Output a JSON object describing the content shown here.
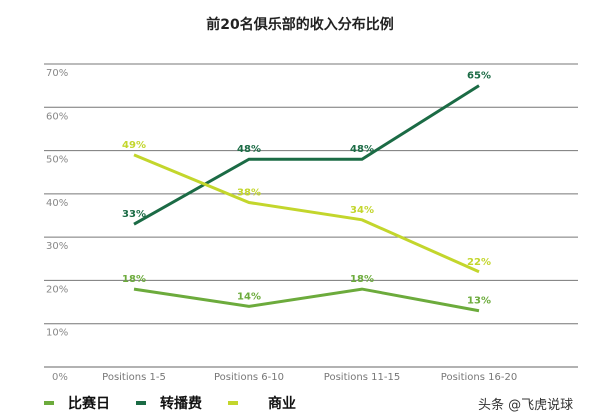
{
  "chart_data": {
    "type": "line",
    "title": "前20名俱乐部的收入分布比例",
    "categories": [
      "Positions 1-5",
      "Positions 6-10",
      "Positions 11-15",
      "Positions 16-20"
    ],
    "ylim": [
      0,
      70
    ],
    "yticks": [
      "0%",
      "10%",
      "20%",
      "30%",
      "40%",
      "50%",
      "60%",
      "70%"
    ],
    "grid": true,
    "legend_placement": "bottom-left",
    "series": [
      {
        "name": "比赛日",
        "values": [
          18,
          14,
          18,
          13
        ],
        "labels": [
          "18%",
          "14%",
          "18%",
          "13%"
        ],
        "color": "#6cab3c"
      },
      {
        "name": "转播费",
        "values": [
          33,
          48,
          48,
          65
        ],
        "labels": [
          "33%",
          "48%",
          "48%",
          "65%"
        ],
        "color": "#1b6b45"
      },
      {
        "name": "商业",
        "values": [
          49,
          38,
          34,
          22
        ],
        "labels": [
          "49%",
          "38%",
          "34%",
          "22%"
        ],
        "color": "#c3d62c"
      }
    ]
  },
  "watermark": "头条 @飞虎说球"
}
